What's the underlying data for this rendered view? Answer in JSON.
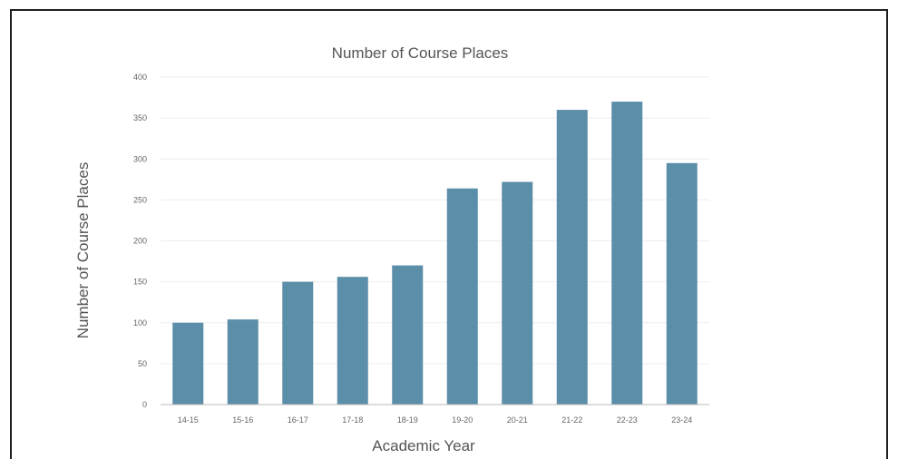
{
  "chart_data": {
    "type": "bar",
    "title": "Number of Course Places",
    "xlabel": "Academic Year",
    "ylabel": "Number of Course Places",
    "categories": [
      "14-15",
      "15-16",
      "16-17",
      "17-18",
      "18-19",
      "19-20",
      "20-21",
      "21-22",
      "22-23",
      "23-24"
    ],
    "values": [
      100,
      104,
      150,
      156,
      170,
      264,
      272,
      360,
      370,
      295
    ],
    "ylim": [
      0,
      400
    ],
    "yticks": [
      0,
      50,
      100,
      150,
      200,
      250,
      300,
      350,
      400
    ],
    "grid": true,
    "legend": "none",
    "colors": {
      "bar": "#5b8ea8",
      "grid": "#eeeeee",
      "axis": "#bbbbbb",
      "text": "#555555"
    }
  }
}
